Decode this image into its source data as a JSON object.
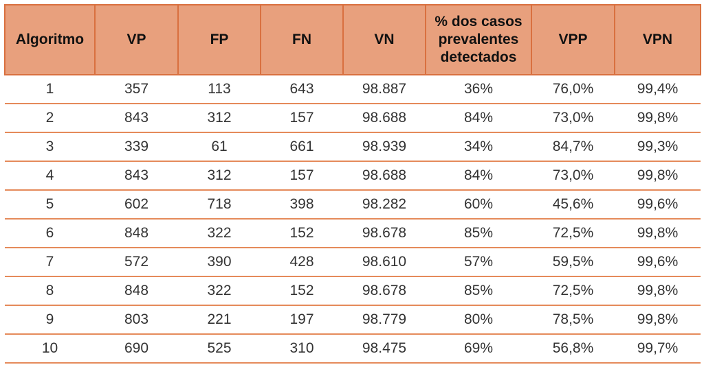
{
  "table": {
    "headers": [
      "Algoritmo",
      "VP",
      "FP",
      "FN",
      "VN",
      "% dos casos prevalentes detectados",
      "VPP",
      "VPN"
    ],
    "rows": [
      [
        "1",
        "357",
        "113",
        "643",
        "98.887",
        "36%",
        "76,0%",
        "99,4%"
      ],
      [
        "2",
        "843",
        "312",
        "157",
        "98.688",
        "84%",
        "73,0%",
        "99,8%"
      ],
      [
        "3",
        "339",
        "61",
        "661",
        "98.939",
        "34%",
        "84,7%",
        "99,3%"
      ],
      [
        "4",
        "843",
        "312",
        "157",
        "98.688",
        "84%",
        "73,0%",
        "99,8%"
      ],
      [
        "5",
        "602",
        "718",
        "398",
        "98.282",
        "60%",
        "45,6%",
        "99,6%"
      ],
      [
        "6",
        "848",
        "322",
        "152",
        "98.678",
        "85%",
        "72,5%",
        "99,8%"
      ],
      [
        "7",
        "572",
        "390",
        "428",
        "98.610",
        "57%",
        "59,5%",
        "99,6%"
      ],
      [
        "8",
        "848",
        "322",
        "152",
        "98.678",
        "85%",
        "72,5%",
        "99,8%"
      ],
      [
        "9",
        "803",
        "221",
        "197",
        "98.779",
        "80%",
        "78,5%",
        "99,8%"
      ],
      [
        "10",
        "690",
        "525",
        "310",
        "98.475",
        "69%",
        "56,8%",
        "99,7%"
      ]
    ]
  },
  "colors": {
    "header_bg": "#e8a07d",
    "header_border": "#d9703f",
    "row_rule": "#e58a5a"
  }
}
